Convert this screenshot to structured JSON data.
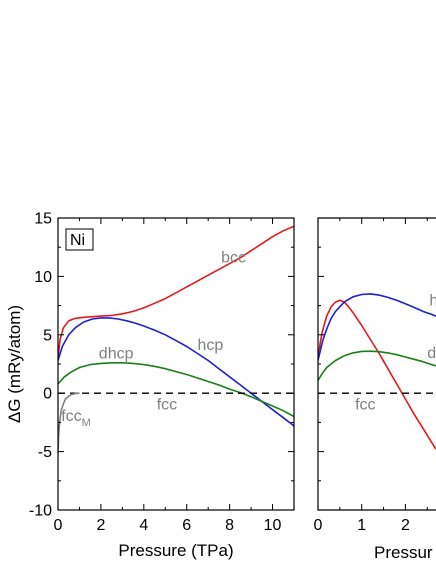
{
  "colors": {
    "bcc": "#e31a1c",
    "hcp": "#1f1fd6",
    "dhcp": "#1a7f1a",
    "fcc": "#000000",
    "fccM": "#808080",
    "label": "#808080"
  },
  "chart_data": [
    {
      "type": "line",
      "panel_label": "Ni",
      "xlabel": "Pressure (TPa)",
      "ylabel": "ΔG (mRy/atom)",
      "xlim": [
        0,
        11
      ],
      "ylim": [
        -10,
        15
      ],
      "x_ticks": [
        0,
        2,
        4,
        6,
        8,
        10
      ],
      "y_ticks": [
        -10,
        -5,
        0,
        5,
        10,
        15
      ],
      "x_tick_labels": [
        "0",
        "2",
        "4",
        "6",
        "8",
        "10"
      ],
      "y_tick_labels": [
        "-10",
        "-5",
        "0",
        "5",
        "10",
        "15"
      ],
      "series": [
        {
          "name": "bcc",
          "color_key": "bcc",
          "x": [
            0,
            0.1,
            0.25,
            0.5,
            0.8,
            1.2,
            1.6,
            2.0,
            2.5,
            3,
            3.5,
            4,
            4.5,
            5,
            5.5,
            6,
            6.5,
            7,
            7.5,
            8,
            8.5,
            9,
            9.5,
            10,
            10.5,
            11
          ],
          "y": [
            3.0,
            4.6,
            5.6,
            6.2,
            6.4,
            6.5,
            6.55,
            6.6,
            6.65,
            6.8,
            7.0,
            7.3,
            7.7,
            8.1,
            8.6,
            9.1,
            9.6,
            10.1,
            10.6,
            11.1,
            11.6,
            12.2,
            12.8,
            13.4,
            13.9,
            14.3
          ],
          "label_text": "bcc",
          "label_at": [
            7.6,
            11.2
          ]
        },
        {
          "name": "hcp",
          "color_key": "hcp",
          "x": [
            0,
            0.2,
            0.5,
            0.8,
            1.2,
            1.6,
            2.0,
            2.4,
            2.8,
            3.2,
            3.6,
            4.0,
            4.5,
            5,
            5.5,
            6,
            6.5,
            7,
            7.5,
            8,
            8.5,
            9,
            9.5,
            10,
            10.5,
            11
          ],
          "y": [
            2.8,
            4.0,
            5.0,
            5.6,
            6.1,
            6.35,
            6.45,
            6.45,
            6.35,
            6.2,
            6.0,
            5.75,
            5.4,
            5.0,
            4.5,
            4.0,
            3.4,
            2.8,
            2.1,
            1.4,
            0.7,
            0.0,
            -0.7,
            -1.4,
            -2.1,
            -2.8
          ],
          "label_text": "hcp",
          "label_at": [
            6.5,
            3.7
          ]
        },
        {
          "name": "dhcp",
          "color_key": "dhcp",
          "x": [
            0,
            0.3,
            0.6,
            1.0,
            1.5,
            2.0,
            2.5,
            3.0,
            3.5,
            4.0,
            4.5,
            5,
            5.5,
            6,
            6.5,
            7,
            7.5,
            8,
            8.5,
            9,
            9.5,
            10,
            10.5,
            11
          ],
          "y": [
            0.8,
            1.4,
            1.8,
            2.2,
            2.45,
            2.55,
            2.6,
            2.6,
            2.55,
            2.45,
            2.3,
            2.1,
            1.85,
            1.6,
            1.3,
            1.0,
            0.7,
            0.35,
            0.05,
            -0.3,
            -0.7,
            -1.1,
            -1.5,
            -2.0
          ],
          "label_text": "dhcp",
          "label_at": [
            1.9,
            2.95
          ]
        },
        {
          "name": "fcc",
          "color_key": "fcc",
          "dashed": true,
          "x": [
            0,
            11
          ],
          "y": [
            0,
            0
          ],
          "label_text": "fcc",
          "label_at": [
            4.6,
            -1.4
          ]
        },
        {
          "name": "fcc_M",
          "color_key": "fccM",
          "x": [
            0,
            0.03,
            0.08,
            0.15,
            0.25,
            0.35,
            0.5,
            0.65,
            0.8,
            1.0
          ],
          "y": [
            -5.2,
            -3.7,
            -2.4,
            -1.5,
            -0.9,
            -0.5,
            -0.25,
            -0.1,
            -0.03,
            0
          ],
          "label_text": "fcc",
          "label_sub": "M",
          "label_at": [
            0.15,
            -2.4
          ]
        }
      ]
    },
    {
      "type": "line",
      "panel_label": "",
      "xlabel": "Pressur",
      "ylabel": "",
      "xlim": [
        0,
        2.7
      ],
      "ylim": [
        -10,
        15
      ],
      "x_ticks": [
        0,
        1,
        2
      ],
      "y_ticks": [
        -10,
        -5,
        0,
        5,
        10,
        15
      ],
      "x_tick_labels": [
        "0",
        "1",
        "2"
      ],
      "series": [
        {
          "name": "bcc",
          "color_key": "bcc",
          "x": [
            0,
            0.05,
            0.1,
            0.2,
            0.3,
            0.4,
            0.5,
            0.6,
            0.7,
            0.8,
            1.0,
            1.2,
            1.4,
            1.6,
            1.8,
            2.0,
            2.2,
            2.4,
            2.6,
            2.7
          ],
          "y": [
            3.0,
            4.3,
            5.3,
            6.6,
            7.4,
            7.8,
            7.95,
            7.8,
            7.4,
            6.9,
            5.8,
            4.6,
            3.4,
            2.1,
            0.8,
            -0.5,
            -1.8,
            -3.0,
            -4.2,
            -4.8
          ],
          "label_text": "",
          "label_at": null
        },
        {
          "name": "hcp",
          "color_key": "hcp",
          "x": [
            0,
            0.05,
            0.1,
            0.2,
            0.3,
            0.4,
            0.6,
            0.8,
            1.0,
            1.2,
            1.4,
            1.6,
            1.8,
            2.0,
            2.2,
            2.4,
            2.6,
            2.7
          ],
          "y": [
            2.8,
            3.6,
            4.4,
            5.5,
            6.4,
            7.0,
            7.8,
            8.25,
            8.45,
            8.5,
            8.4,
            8.2,
            7.95,
            7.65,
            7.35,
            7.0,
            6.75,
            6.6
          ],
          "label_text": "h",
          "label_at": [
            2.55,
            7.5
          ]
        },
        {
          "name": "dhcp",
          "color_key": "dhcp",
          "x": [
            0,
            0.1,
            0.2,
            0.4,
            0.6,
            0.8,
            1.0,
            1.2,
            1.4,
            1.6,
            1.8,
            2.0,
            2.2,
            2.4,
            2.6,
            2.7
          ],
          "y": [
            1.1,
            1.7,
            2.2,
            2.8,
            3.2,
            3.45,
            3.58,
            3.6,
            3.55,
            3.45,
            3.3,
            3.1,
            2.9,
            2.7,
            2.45,
            2.35
          ],
          "label_text": "dh",
          "label_at": [
            2.5,
            3.0
          ]
        },
        {
          "name": "fcc",
          "color_key": "fcc",
          "dashed": true,
          "x": [
            0,
            2.7
          ],
          "y": [
            0,
            0
          ],
          "label_text": "fcc",
          "label_at": [
            0.85,
            -1.4
          ]
        }
      ]
    }
  ]
}
